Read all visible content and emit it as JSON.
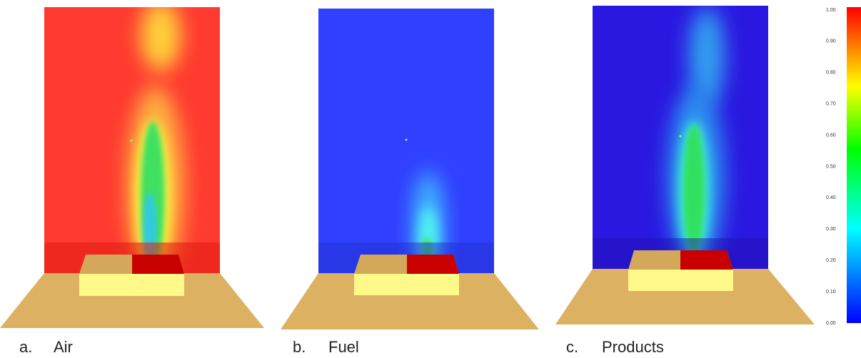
{
  "panels": [
    {
      "letter": "a.",
      "label": "Air"
    },
    {
      "letter": "b.",
      "label": "Fuel"
    },
    {
      "letter": "c.",
      "label": "Products"
    }
  ],
  "colorbar": {
    "ticks": [
      "1.00",
      "0.90",
      "0.80",
      "0.70",
      "0.60",
      "0.50",
      "0.40",
      "0.30",
      "0.20",
      "0.10",
      "0.00"
    ]
  }
}
